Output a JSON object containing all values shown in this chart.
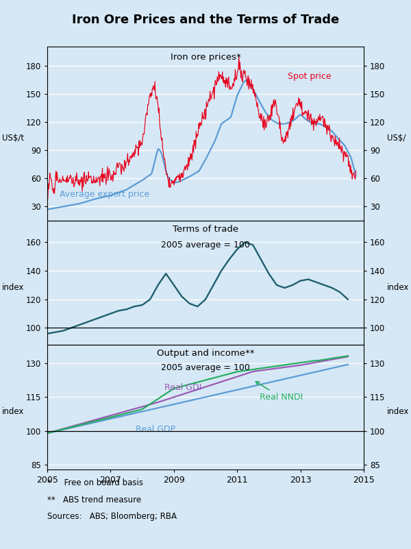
{
  "title": "Iron Ore Prices and the Terms of Trade",
  "background_color": "#d6e8f5",
  "panel1": {
    "title": "Iron ore prices*",
    "ylabel_left": "US$/t",
    "ylabel_right": "US$/",
    "ylim": [
      15,
      200
    ],
    "yticks": [
      30,
      60,
      90,
      120,
      150,
      180
    ],
    "spot_color": "#e8001c",
    "avg_color": "#5b9bd5",
    "spot_label": "Spot price",
    "avg_label": "Average export price"
  },
  "panel2": {
    "title": "Terms of trade",
    "subtitle": "2005 average = 100",
    "ylabel_left": "index",
    "ylabel_right": "index",
    "ylim": [
      88,
      175
    ],
    "yticks": [
      100,
      120,
      140,
      160
    ],
    "line_color": "#1f5f6e"
  },
  "panel3": {
    "title": "Output and income**",
    "subtitle": "2005 average = 100",
    "ylabel_left": "index",
    "ylabel_right": "index",
    "ylim": [
      83,
      138
    ],
    "yticks": [
      85,
      100,
      115,
      130
    ],
    "gdp_color": "#5b9bd5",
    "gdi_color": "#9b59b6",
    "nndi_color": "#27ae60",
    "gdp_label": "Real GDP",
    "gdi_label": "Real GDI",
    "nndi_label": "Real NNDI"
  },
  "xmin": 2005.0,
  "xmax": 2015.0,
  "xticks": [
    2005,
    2007,
    2009,
    2011,
    2013,
    2015
  ],
  "footnote1": "*     Free on board basis",
  "footnote2": "**   ABS trend measure",
  "footnote3": "Sources:   ABS; Bloomberg; RBA"
}
